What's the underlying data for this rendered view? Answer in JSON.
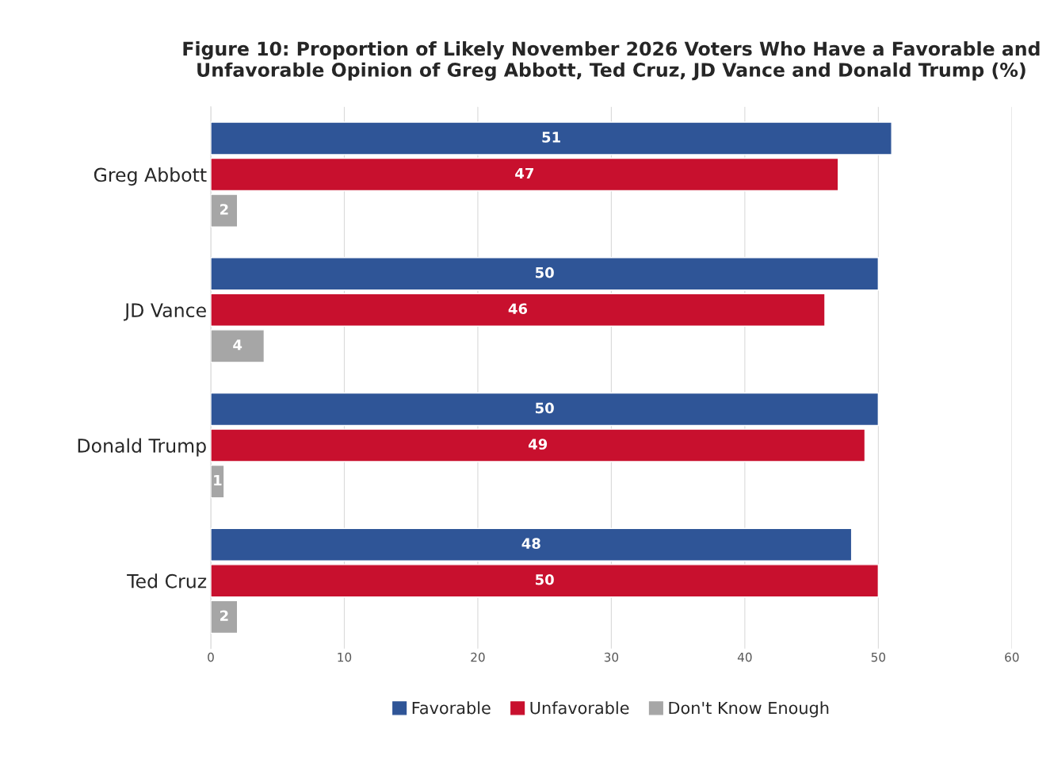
{
  "chart_data": {
    "type": "bar",
    "orientation": "horizontal",
    "title": "Figure 10: Proportion of Likely November 2026 Voters Who Have a Favorable and Unfavorable Opinion of Greg Abbott, Ted Cruz, JD Vance and Donald Trump (%)",
    "categories": [
      "Greg Abbott",
      "JD Vance",
      "Donald Trump",
      "Ted Cruz"
    ],
    "series": [
      {
        "name": "Favorable",
        "color": "#2f5597",
        "values": [
          51,
          50,
          50,
          48
        ]
      },
      {
        "name": "Unfavorable",
        "color": "#c8102e",
        "values": [
          47,
          46,
          49,
          50
        ]
      },
      {
        "name": "Don't Know Enough",
        "color": "#a6a6a6",
        "values": [
          2,
          4,
          1,
          2
        ]
      }
    ],
    "xlim": [
      0,
      60
    ],
    "xticks": [
      0,
      10,
      20,
      30,
      40,
      50,
      60
    ],
    "grid": "x",
    "legend": "bottom",
    "data_labels": true
  }
}
